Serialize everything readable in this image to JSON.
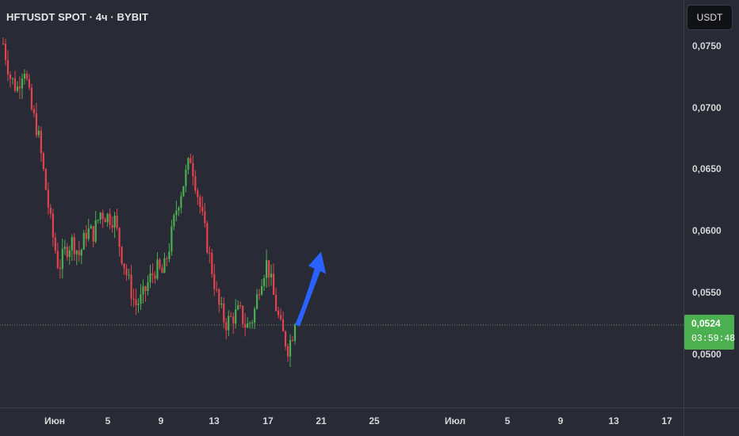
{
  "header": {
    "symbol_title": "HFTUSDT SPOT · 4ч · BYBIT",
    "currency_button": "USDT"
  },
  "price_axis": {
    "labels": [
      "0,0750",
      "0,0700",
      "0,0650",
      "0,0600",
      "0,0550",
      "0,0500"
    ]
  },
  "time_axis": {
    "labels": [
      "Июн",
      "5",
      "9",
      "13",
      "17",
      "21",
      "25",
      "Июл",
      "5",
      "9",
      "13",
      "17"
    ]
  },
  "last_price": {
    "value": "0,0524",
    "countdown": "03:59:48"
  },
  "colors": {
    "background": "#282a36",
    "up_candle": "#4caf50",
    "down_candle": "#e2444f",
    "arrow": "#2962ff",
    "last_price_tag": "#4caf50"
  },
  "chart_data": {
    "type": "candlestick",
    "title": "HFTUSDT SPOT · 4ч · BYBIT",
    "ylim": [
      0.0465,
      0.0782
    ],
    "x_tick_labels": [
      "Июн",
      "5",
      "9",
      "13",
      "17",
      "21",
      "25",
      "Июл",
      "5",
      "9",
      "13",
      "17"
    ],
    "y_tick_values": [
      0.075,
      0.07,
      0.065,
      0.06,
      0.055,
      0.05
    ],
    "last_price": 0.0524,
    "close_path": [
      0.0752,
      0.0725,
      0.0715,
      0.0735,
      0.07,
      0.068,
      0.064,
      0.06,
      0.057,
      0.0585,
      0.0592,
      0.058,
      0.06,
      0.0598,
      0.0615,
      0.0612,
      0.061,
      0.0582,
      0.056,
      0.054,
      0.0545,
      0.056,
      0.057,
      0.0565,
      0.059,
      0.062,
      0.064,
      0.066,
      0.063,
      0.06,
      0.057,
      0.054,
      0.0525,
      0.053,
      0.0535,
      0.0522,
      0.053,
      0.056,
      0.0575,
      0.0545,
      0.052,
      0.0505,
      0.0524
    ],
    "forecast_arrow": {
      "from_price": 0.0524,
      "to_price": 0.0582,
      "direction": "up"
    }
  }
}
